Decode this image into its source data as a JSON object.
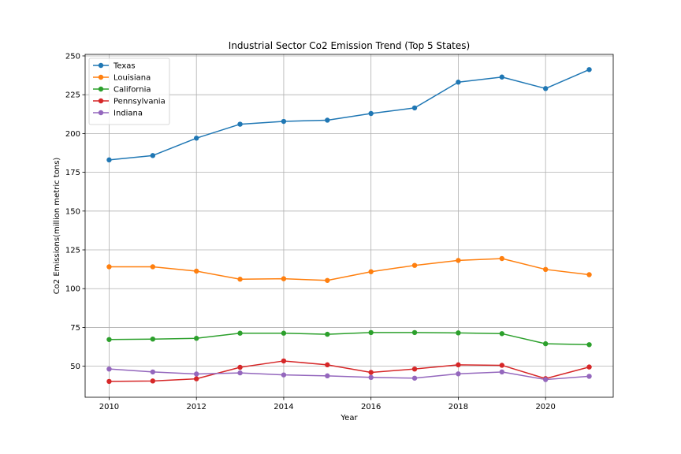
{
  "chart_data": {
    "type": "line",
    "title": "Industrial Sector Co2 Emission Trend (Top 5 States)",
    "xlabel": "Year",
    "ylabel": "Co2 Emissions(million metric tons)",
    "x": [
      2010,
      2011,
      2012,
      2013,
      2014,
      2015,
      2016,
      2017,
      2018,
      2019,
      2020,
      2021
    ],
    "xlim": [
      2009.45,
      2021.55
    ],
    "ylim": [
      30,
      251
    ],
    "x_ticks": [
      2010,
      2012,
      2014,
      2016,
      2018,
      2020
    ],
    "y_ticks": [
      50,
      75,
      100,
      125,
      150,
      175,
      200,
      225,
      250
    ],
    "x_tick_labels": [
      "2010",
      "2012",
      "2014",
      "2016",
      "2018",
      "2020"
    ],
    "y_tick_labels": [
      "50",
      "75",
      "100",
      "125",
      "150",
      "175",
      "200",
      "225",
      "250"
    ],
    "grid": true,
    "legend_position": "upper-left",
    "series": [
      {
        "name": "Texas",
        "color": "#1f77b4",
        "values": [
          183,
          185.8,
          197,
          206,
          207.8,
          208.6,
          212.9,
          216.5,
          233.1,
          236.4,
          229,
          241.2
        ]
      },
      {
        "name": "Louisiana",
        "color": "#ff7f0e",
        "values": [
          114.1,
          114.1,
          111.3,
          106.1,
          106.4,
          105.3,
          110.9,
          115,
          118.2,
          119.4,
          112.4,
          109
        ]
      },
      {
        "name": "California",
        "color": "#2ca02c",
        "values": [
          67.2,
          67.5,
          68,
          71.3,
          71.3,
          70.6,
          71.7,
          71.7,
          71.5,
          71,
          64.5,
          63.9
        ]
      },
      {
        "name": "Pennsylvania",
        "color": "#d62728",
        "values": [
          40.2,
          40.5,
          41.9,
          49.3,
          53.4,
          50.9,
          46,
          48.2,
          50.9,
          50.6,
          42,
          49.5
        ]
      },
      {
        "name": "Indiana",
        "color": "#9467bd",
        "values": [
          48.2,
          46.3,
          45,
          45.7,
          44.4,
          43.8,
          42.8,
          42.3,
          45.1,
          46.3,
          41.4,
          43.5
        ]
      }
    ]
  }
}
